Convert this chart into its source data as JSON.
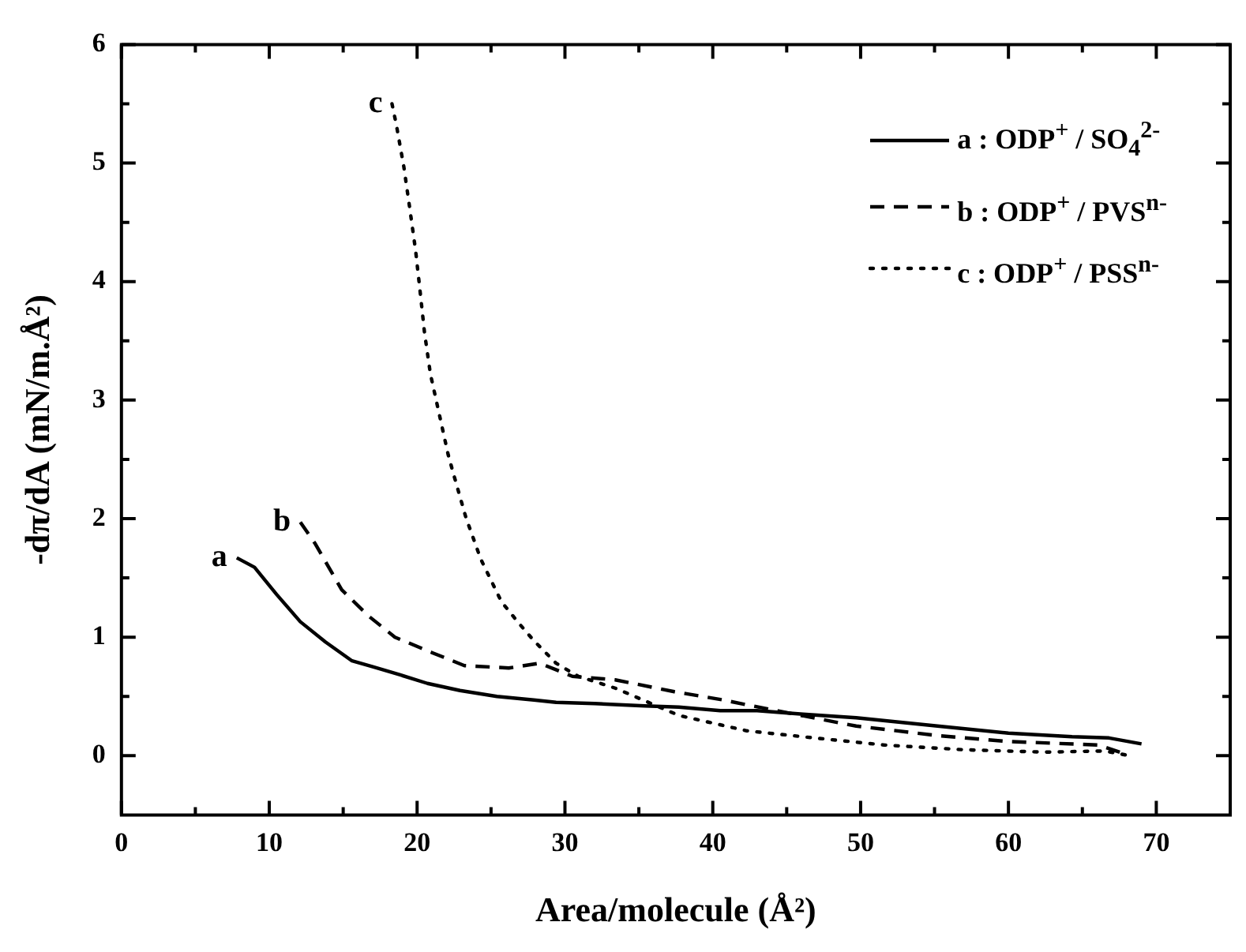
{
  "chart_data": {
    "type": "line",
    "xlabel": "Area/molecule (Å²)",
    "ylabel": "-dπ/dA (mN/m.Å²)",
    "xlim": [
      0,
      75
    ],
    "ylim": [
      -0.5,
      6
    ],
    "xticks": [
      0,
      {
        "value": 5,
        "label": null
      },
      10,
      {
        "value": 15,
        "label": null
      },
      20,
      {
        "value": 25,
        "label": null
      },
      30,
      {
        "value": 35,
        "label": null
      },
      40,
      {
        "value": 45,
        "label": null
      },
      50,
      {
        "value": 55,
        "label": null
      },
      60,
      {
        "value": 65,
        "label": null
      },
      70
    ],
    "yticks": [
      0,
      {
        "value": 0.5,
        "label": null
      },
      1,
      {
        "value": 1.5,
        "label": null
      },
      2,
      {
        "value": 2.5,
        "label": null
      },
      3,
      {
        "value": 3.5,
        "label": null
      },
      4,
      {
        "value": 4.5,
        "label": null
      },
      5,
      {
        "value": 5.5,
        "label": null
      },
      6
    ],
    "grid": false,
    "legend": "top right",
    "marker": "none",
    "annotations": [
      {
        "text": "a",
        "x": 7.8,
        "y": 1.67
      },
      {
        "text": "b",
        "x": 12.1,
        "y": 1.97
      },
      {
        "text": "c",
        "x": 18.3,
        "y": 5.5
      }
    ],
    "series": [
      {
        "name": "a : ODP$^{+}$ / SO$_{4}$$^{2-}$",
        "color": "#000000",
        "line_style": "solid",
        "x": [
          7.8,
          9.0,
          10.5,
          12.1,
          13.8,
          15.6,
          17.0,
          18.9,
          20.7,
          22.9,
          25.4,
          27.9,
          29.4,
          32.0,
          35.4,
          37.7,
          40.5,
          43.0,
          46.1,
          49.7,
          55.2,
          60.0,
          64.3,
          66.8,
          69.0
        ],
        "values": [
          1.67,
          1.59,
          1.36,
          1.13,
          0.96,
          0.8,
          0.75,
          0.68,
          0.61,
          0.55,
          0.5,
          0.47,
          0.45,
          0.44,
          0.42,
          0.41,
          0.38,
          0.38,
          0.35,
          0.32,
          0.25,
          0.19,
          0.16,
          0.15,
          0.1
        ]
      },
      {
        "name": "b : ODP$^{+}$ / PVS$^{n-}$",
        "color": "#000000",
        "line_style": "dashed",
        "x": [
          12.1,
          13.1,
          14.9,
          16.7,
          18.5,
          21.0,
          23.2,
          26.2,
          28.3,
          30.5,
          33.4,
          37.4,
          40.7,
          44.3,
          49.7,
          55.2,
          60.0,
          66.1,
          68.0
        ],
        "values": [
          1.97,
          1.79,
          1.4,
          1.18,
          1.0,
          0.87,
          0.76,
          0.74,
          0.78,
          0.67,
          0.64,
          0.54,
          0.47,
          0.38,
          0.25,
          0.17,
          0.12,
          0.09,
          0.01
        ]
      },
      {
        "name": "c : ODP$^{+}$ / PSS$^{n-}$",
        "color": "#000000",
        "line_style": "dotted",
        "x": [
          18.3,
          18.6,
          19.1,
          19.5,
          19.9,
          20.2,
          20.5,
          20.9,
          21.5,
          22.1,
          22.5,
          23.3,
          24.3,
          25.7,
          26.8,
          27.9,
          29.4,
          30.9,
          33.4,
          37.7,
          42.3,
          46.1,
          51.6,
          57.0,
          62.5,
          66.5,
          68.2
        ],
        "values": [
          5.5,
          5.32,
          4.97,
          4.62,
          4.26,
          3.92,
          3.57,
          3.22,
          2.88,
          2.54,
          2.36,
          2.01,
          1.66,
          1.3,
          1.13,
          0.97,
          0.78,
          0.67,
          0.57,
          0.34,
          0.21,
          0.16,
          0.09,
          0.05,
          0.03,
          0.04,
          0.0
        ]
      }
    ]
  }
}
